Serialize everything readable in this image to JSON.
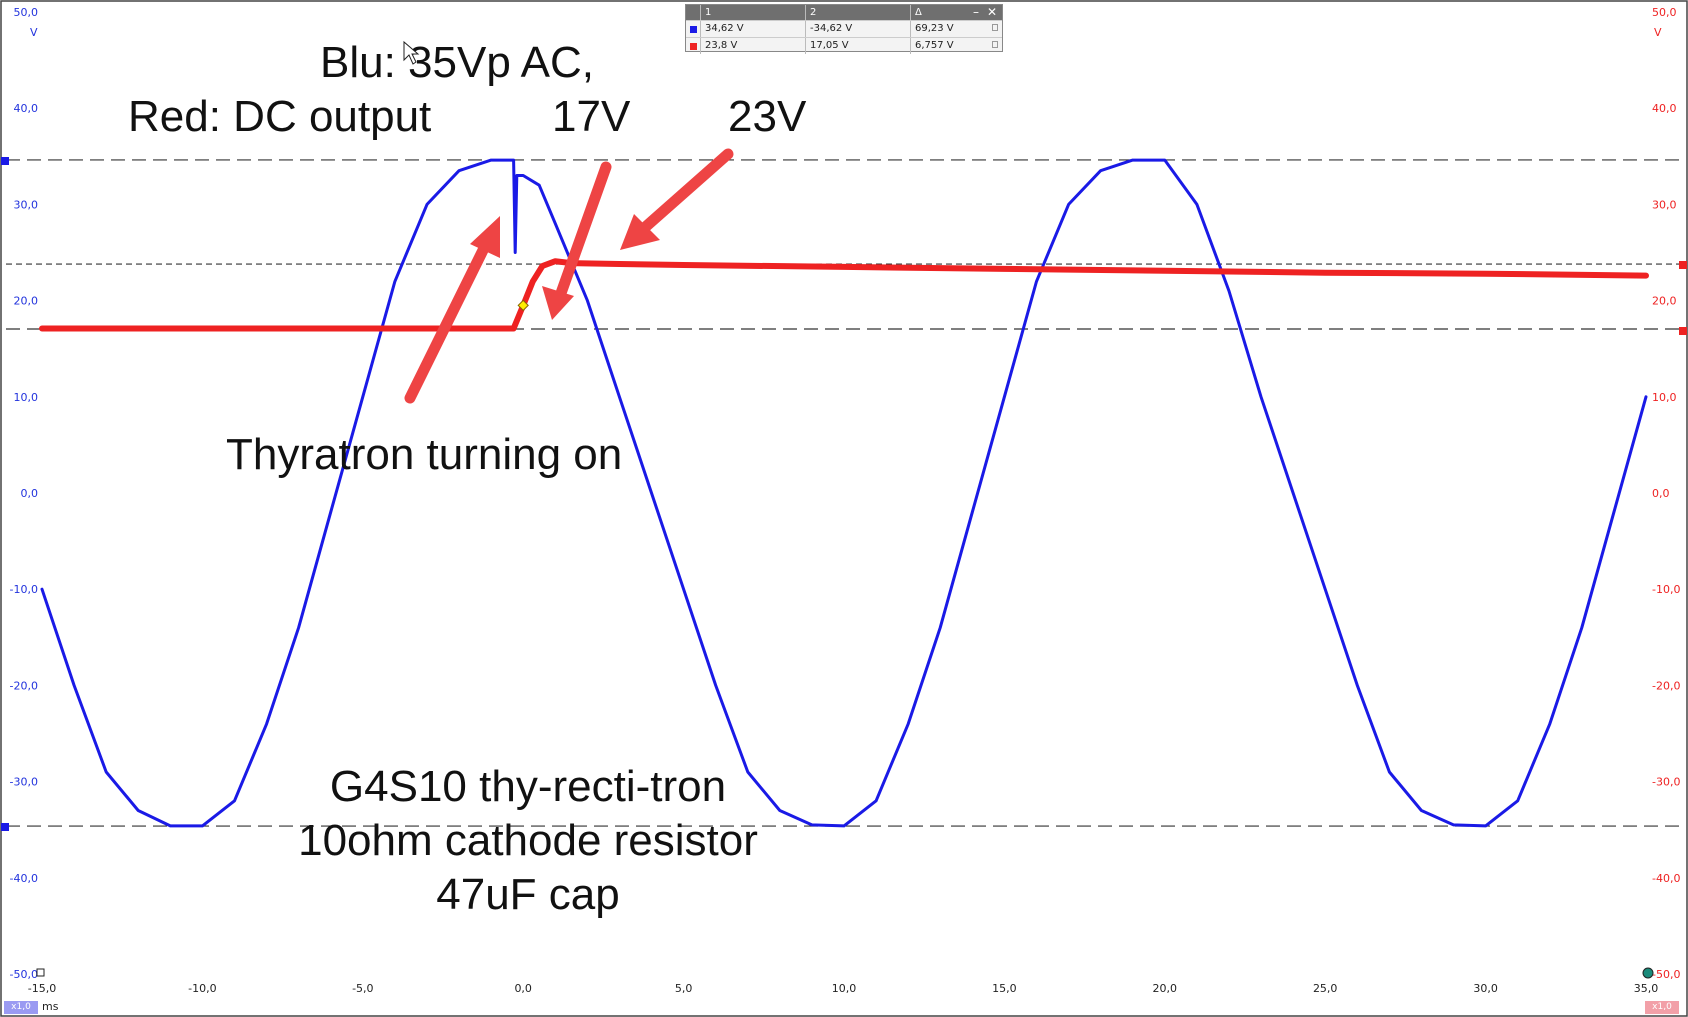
{
  "chart_data": {
    "type": "line",
    "x_unit": "ms",
    "xlim": [
      -15,
      35
    ],
    "ylim": [
      -50,
      50
    ],
    "y_unit_left": "V",
    "y_unit_right": "V",
    "x_ticks": [
      "-15,0",
      "-10,0",
      "-5,0",
      "0,0",
      "5,0",
      "10,0",
      "15,0",
      "20,0",
      "25,0",
      "30,0",
      "35,0"
    ],
    "y_ticks_left": [
      "50,0",
      "40,0",
      "30,0",
      "20,0",
      "10,0",
      "0,0",
      "-10,0",
      "-20,0",
      "-30,0",
      "-40,0",
      "-50,0"
    ],
    "y_ticks_right": [
      "50,0",
      "40,0",
      "30,0",
      "20,0",
      "10,0",
      "0,0",
      "-10,0",
      "-20,0",
      "-30,0",
      "-40,0",
      "-50,0"
    ],
    "series": [
      {
        "color": "#1a1ae6",
        "x": [
          -15,
          -14,
          -13,
          -12,
          -11,
          -10,
          -9,
          -8,
          -7,
          -6,
          -5,
          -4,
          -3,
          -2,
          -1,
          -0.3,
          -0.25,
          -0.2,
          0,
          0.5,
          1,
          2,
          3,
          4,
          5,
          6,
          7,
          8,
          9,
          10,
          11,
          12,
          13,
          14,
          15,
          16,
          17,
          18,
          19,
          20,
          21,
          22,
          23,
          24,
          25,
          26,
          27,
          28,
          29,
          30,
          31,
          32,
          33,
          34,
          35
        ],
        "y": [
          -10,
          -20,
          -29,
          -33,
          -34.6,
          -34.6,
          -32,
          -24,
          -14,
          -2,
          10,
          22,
          30,
          33.5,
          34.6,
          34.6,
          25,
          33,
          33,
          32,
          28,
          20,
          10,
          0,
          -10,
          -20,
          -29,
          -33,
          -34.5,
          -34.6,
          -32,
          -24,
          -14,
          -2,
          10,
          22,
          30,
          33.5,
          34.6,
          34.6,
          30,
          21,
          10,
          0,
          -10,
          -20,
          -29,
          -33,
          -34.5,
          -34.6,
          -32,
          -24,
          -14,
          -2,
          10
        ]
      },
      {
        "color": "#ee2222",
        "x": [
          -15,
          -13,
          -11,
          -9,
          -7,
          -5,
          -3,
          -1,
          -0.3,
          0,
          0.3,
          0.6,
          1,
          1.5,
          3,
          5,
          10,
          15,
          20,
          25,
          30,
          35
        ],
        "y": [
          17.1,
          17.1,
          17.1,
          17.1,
          17.1,
          17.1,
          17.1,
          17.1,
          17.1,
          19.5,
          22.0,
          23.6,
          24.1,
          23.9,
          23.8,
          23.7,
          23.5,
          23.3,
          23.1,
          22.9,
          22.8,
          22.6
        ]
      }
    ],
    "cursor_levels": [
      34.62,
      -34.62,
      23.8,
      17.05
    ],
    "annotations": {
      "line1": "Blu: 35Vp AC,",
      "line2": "Red: DC output",
      "label_17v": "17V",
      "label_23v": "23V",
      "thyratron": "Thyratron turning on",
      "footer1": "G4S10 thy-recti-tron",
      "footer2": "10ohm cathode resistor",
      "footer3": "47uF cap"
    }
  },
  "cursor_table": {
    "headers": [
      "1",
      "2",
      "Δ"
    ],
    "rows": [
      {
        "color": "#1a1ae6",
        "v1": "34,62 V",
        "v2": "-34,62 V",
        "delta": "69,23 V"
      },
      {
        "color": "#ee2222",
        "v1": "23,8 V",
        "v2": "17,05 V",
        "delta": "6,757 V"
      }
    ]
  },
  "x_badge": "x1,0",
  "x_unit": "ms",
  "right_badge": "x1,0"
}
